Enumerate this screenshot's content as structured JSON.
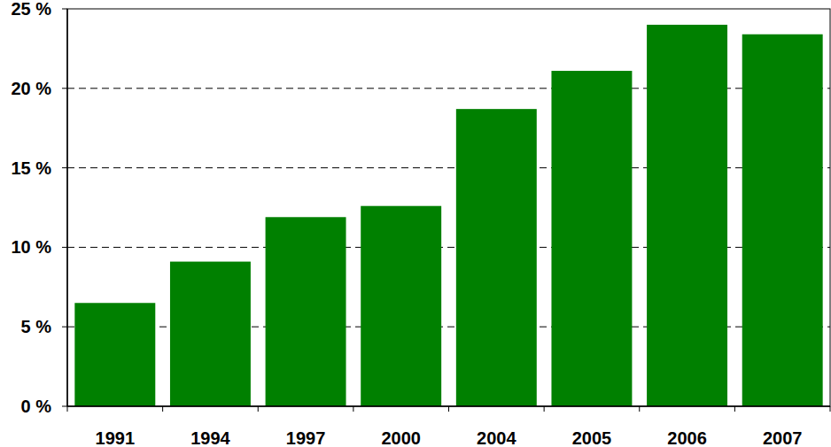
{
  "chart_data": {
    "type": "bar",
    "categories": [
      "1991",
      "1994",
      "1997",
      "2000",
      "2004",
      "2005",
      "2006",
      "2007"
    ],
    "values": [
      6.5,
      9.1,
      11.9,
      12.6,
      18.7,
      21.1,
      24.0,
      23.4
    ],
    "color": "#008000",
    "ylim": [
      0,
      25
    ],
    "yticks": [
      {
        "value": 0,
        "label": "0 %"
      },
      {
        "value": 5,
        "label": "5 %"
      },
      {
        "value": 10,
        "label": "10 %"
      },
      {
        "value": 15,
        "label": "15 %"
      },
      {
        "value": 20,
        "label": "20 %"
      },
      {
        "value": 25,
        "label": "25 %"
      }
    ],
    "grid": true
  }
}
